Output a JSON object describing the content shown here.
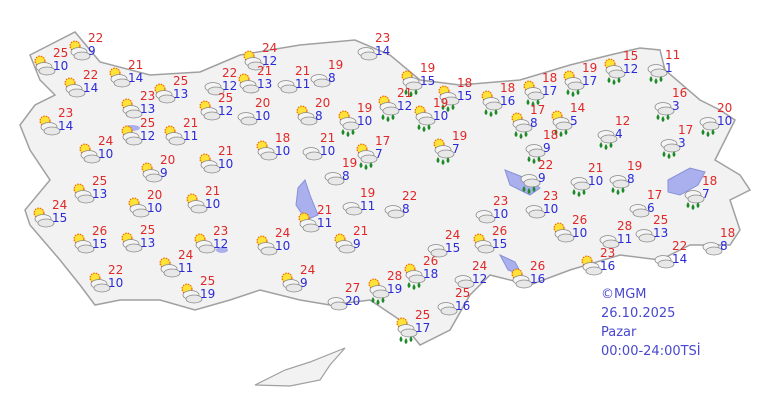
{
  "map": {
    "colors": {
      "land": "#f2f2f2",
      "border": "#a0a0a0",
      "lake": "#aab0ee",
      "max_temp": "#e02828",
      "min_temp": "#2a2ad8",
      "legend": "#4848d0"
    },
    "icon_types": {
      "ps": "partly-sunny-icon",
      "cl": "cloudy-icon",
      "rs": "sun-cloud-rain-icon",
      "rn": "cloud-rain-icon"
    },
    "stations": [
      {
        "type": "ps",
        "max": "25",
        "min": "10"
      },
      {
        "type": "ps",
        "max": "22",
        "min": "9"
      },
      {
        "type": "ps",
        "max": "22",
        "min": "14"
      },
      {
        "type": "ps",
        "max": "21",
        "min": "14"
      },
      {
        "type": "ps",
        "max": "23",
        "min": "14"
      },
      {
        "type": "ps",
        "max": "25",
        "min": "13"
      },
      {
        "type": "ps",
        "max": "23",
        "min": "13"
      },
      {
        "type": "ps",
        "max": "25",
        "min": "12"
      },
      {
        "type": "ps",
        "max": "21",
        "min": "11"
      },
      {
        "type": "ps",
        "max": "24",
        "min": "10"
      },
      {
        "type": "ps",
        "max": "20",
        "min": "9"
      },
      {
        "type": "ps",
        "max": "21",
        "min": "10"
      },
      {
        "type": "cl",
        "max": "22",
        "min": "12"
      },
      {
        "type": "ps",
        "max": "24",
        "min": "12"
      },
      {
        "type": "ps",
        "max": "21",
        "min": "13"
      },
      {
        "type": "ps",
        "max": "25",
        "min": "12"
      },
      {
        "type": "cl",
        "max": "20",
        "min": "10"
      },
      {
        "type": "cl",
        "max": "21",
        "min": "11"
      },
      {
        "type": "cl",
        "max": "19",
        "min": "8"
      },
      {
        "type": "ps",
        "max": "20",
        "min": "8"
      },
      {
        "type": "ps",
        "max": "18",
        "min": "10"
      },
      {
        "type": "cl",
        "max": "21",
        "min": "10"
      },
      {
        "type": "cl",
        "max": "23",
        "min": "14"
      },
      {
        "type": "rs",
        "max": "19",
        "min": "15"
      },
      {
        "type": "rs",
        "max": "18",
        "min": "15"
      },
      {
        "type": "rs",
        "max": "18",
        "min": "16"
      },
      {
        "type": "rs",
        "max": "19",
        "min": "10"
      },
      {
        "type": "rs",
        "max": "21",
        "min": "12"
      },
      {
        "type": "rs",
        "max": "19",
        "min": "10"
      },
      {
        "type": "rs",
        "max": "17",
        "min": "7"
      },
      {
        "type": "rs",
        "max": "19",
        "min": "7"
      },
      {
        "type": "cl",
        "max": "19",
        "min": "8"
      },
      {
        "type": "ps",
        "max": "21",
        "min": "11"
      },
      {
        "type": "ps",
        "max": "24",
        "min": "10"
      },
      {
        "type": "ps",
        "max": "21",
        "min": "9"
      },
      {
        "type": "cl",
        "max": "19",
        "min": "11"
      },
      {
        "type": "cl",
        "max": "22",
        "min": "8"
      },
      {
        "type": "ps",
        "max": "24",
        "min": "9"
      },
      {
        "type": "cl",
        "max": "27",
        "min": "20"
      },
      {
        "type": "rs",
        "max": "28",
        "min": "19"
      },
      {
        "type": "rs",
        "max": "26",
        "min": "18"
      },
      {
        "type": "rs",
        "max": "25",
        "min": "17"
      },
      {
        "type": "cl",
        "max": "24",
        "min": "15"
      },
      {
        "type": "cl",
        "max": "24",
        "min": "12"
      },
      {
        "type": "cl",
        "max": "25",
        "min": "16"
      },
      {
        "type": "cl",
        "max": "23",
        "min": "10"
      },
      {
        "type": "ps",
        "max": "26",
        "min": "15"
      },
      {
        "type": "rs",
        "max": "18",
        "min": "17"
      },
      {
        "type": "rs",
        "max": "19",
        "min": "17"
      },
      {
        "type": "rs",
        "max": "15",
        "min": "12"
      },
      {
        "type": "rn",
        "max": "11",
        "min": "1"
      },
      {
        "type": "rs",
        "max": "17",
        "min": "8"
      },
      {
        "type": "rs",
        "max": "14",
        "min": "5"
      },
      {
        "type": "rn",
        "max": "12",
        "min": "4"
      },
      {
        "type": "rn",
        "max": "16",
        "min": "3"
      },
      {
        "type": "rn",
        "max": "20",
        "min": "10"
      },
      {
        "type": "rn",
        "max": "17",
        "min": "3"
      },
      {
        "type": "rn",
        "max": "18",
        "min": "9"
      },
      {
        "type": "rn",
        "max": "22",
        "min": "9"
      },
      {
        "type": "rn",
        "max": "21",
        "min": "10"
      },
      {
        "type": "rn",
        "max": "19",
        "min": "8"
      },
      {
        "type": "rn",
        "max": "18",
        "min": "7"
      },
      {
        "type": "cl",
        "max": "17",
        "min": "6"
      },
      {
        "type": "cl",
        "max": "23",
        "min": "10"
      },
      {
        "type": "ps",
        "max": "26",
        "min": "10"
      },
      {
        "type": "cl",
        "max": "28",
        "min": "11"
      },
      {
        "type": "cl",
        "max": "25",
        "min": "13"
      },
      {
        "type": "cl",
        "max": "22",
        "min": "14"
      },
      {
        "type": "cl",
        "max": "18",
        "min": "8"
      },
      {
        "type": "ps",
        "max": "23",
        "min": "16"
      },
      {
        "type": "ps",
        "max": "26",
        "min": "16"
      },
      {
        "type": "ps",
        "max": "25",
        "min": "13"
      },
      {
        "type": "ps",
        "max": "24",
        "min": "15"
      },
      {
        "type": "ps",
        "max": "20",
        "min": "10"
      },
      {
        "type": "ps",
        "max": "21",
        "min": "10"
      },
      {
        "type": "ps",
        "max": "26",
        "min": "15"
      },
      {
        "type": "ps",
        "max": "25",
        "min": "13"
      },
      {
        "type": "ps",
        "max": "23",
        "min": "12"
      },
      {
        "type": "ps",
        "max": "24",
        "min": "11"
      },
      {
        "type": "ps",
        "max": "22",
        "min": "10"
      },
      {
        "type": "ps",
        "max": "25",
        "min": "19"
      }
    ]
  },
  "legend": {
    "copyright": "©MGM",
    "date": "26.10.2025",
    "day": "Pazar",
    "time_range": "00:00-24:00TSİ"
  }
}
